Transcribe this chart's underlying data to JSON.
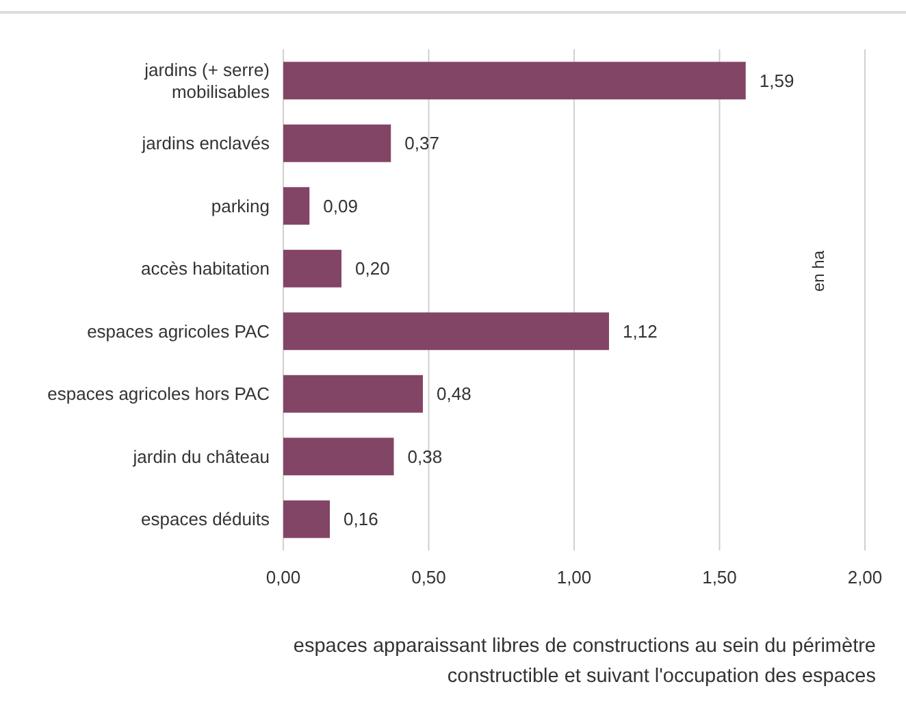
{
  "chart_data": {
    "type": "bar",
    "orientation": "horizontal",
    "categories": [
      "jardins (+ serre)\nmobilisables",
      "jardins enclavés",
      "parking",
      "accès habitation",
      "espaces agricoles PAC",
      "espaces agricoles hors PAC",
      "jardin du château",
      "espaces déduits"
    ],
    "values": [
      1.59,
      0.37,
      0.09,
      0.2,
      1.12,
      0.48,
      0.38,
      0.16
    ],
    "value_labels": [
      "1,59",
      "0,37",
      "0,09",
      "0,20",
      "1,12",
      "0,48",
      "0,38",
      "0,16"
    ],
    "color": "#834566",
    "xlim": [
      0,
      2
    ],
    "xticks": [
      {
        "value": 0,
        "label": "0,00"
      },
      {
        "value": 0.5,
        "label": "0,50"
      },
      {
        "value": 1,
        "label": "1,00"
      },
      {
        "value": 1.5,
        "label": "1,50"
      },
      {
        "value": 2,
        "label": "2,00"
      }
    ],
    "grid": "x",
    "xlabel": "espaces apparaissant libres de constructions au sein du périmètre\nconstructible et suivant l'occupation des espaces",
    "annotations": [
      "en ha"
    ]
  }
}
